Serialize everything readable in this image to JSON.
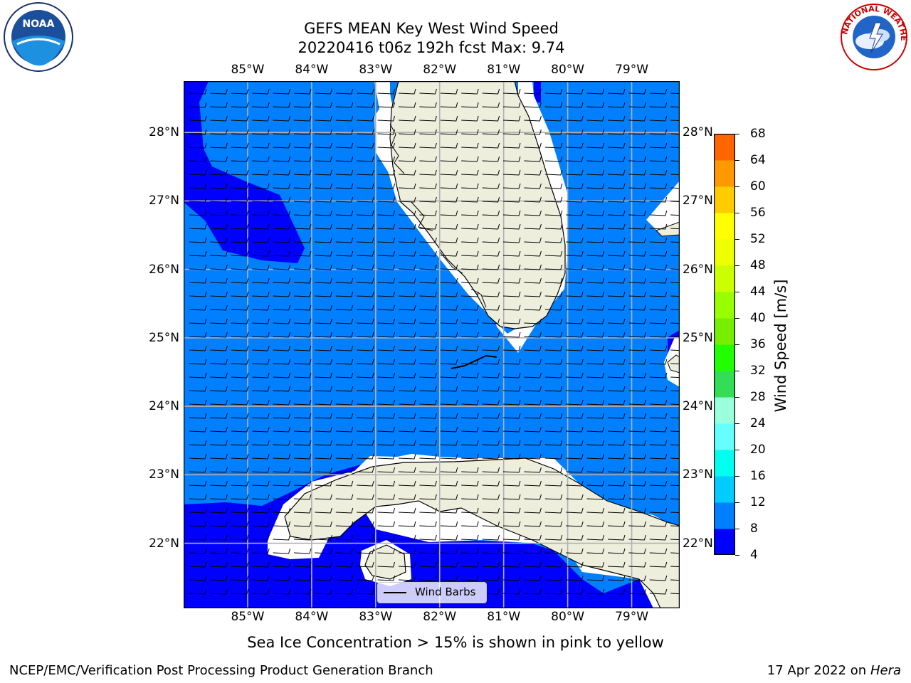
{
  "title": {
    "line1": "GEFS MEAN Key West Wind Speed",
    "line2": "20220416 t06z 192h fcst   Max: 9.74"
  },
  "map": {
    "lon_ticks": [
      "85°W",
      "84°W",
      "83°W",
      "82°W",
      "81°W",
      "80°W",
      "79°W"
    ],
    "lat_ticks": [
      "28°N",
      "27°N",
      "26°N",
      "25°N",
      "24°N",
      "23°N",
      "22°N"
    ],
    "lon_range": [
      -86.0,
      -78.25
    ],
    "lat_range": [
      21.05,
      28.75
    ],
    "colors": {
      "land": "#eeeedd",
      "speed_4_8": "#0000ff",
      "speed_8_12": "#0080ff",
      "gridline": "#b0b0b0",
      "coast": "#000000"
    }
  },
  "legend": {
    "label": "Wind Barbs"
  },
  "colorbar": {
    "label": "Wind Speed [m/s]",
    "ticks": [
      "4",
      "8",
      "12",
      "16",
      "20",
      "24",
      "28",
      "32",
      "36",
      "40",
      "44",
      "48",
      "52",
      "56",
      "60",
      "64",
      "68"
    ],
    "segment_colors": [
      "#0000ff",
      "#0080ff",
      "#00ccff",
      "#00ffee",
      "#66ffff",
      "#99ffdd",
      "#33dd55",
      "#22ff00",
      "#77ee00",
      "#99ff00",
      "#ccff00",
      "#eeff00",
      "#ffff00",
      "#ffcc00",
      "#ff9900",
      "#ff6600",
      "#ff3300",
      "#ff0000"
    ]
  },
  "subtitle": "Sea Ice Concentration > 15% is shown in pink to yellow",
  "footer": {
    "left": "NCEP/EMC/Verification Post Processing Product Generation Branch",
    "right_date": "17 Apr 2022 on ",
    "right_host": "Hera"
  },
  "logos": {
    "noaa": "NOAA",
    "nws": "NATIONAL WEATHER SERVICE"
  }
}
